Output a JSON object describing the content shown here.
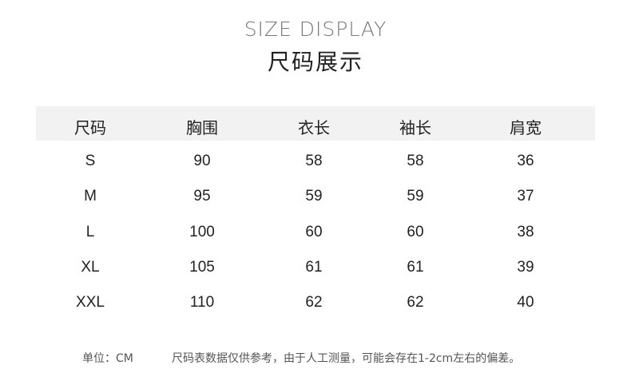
{
  "title_en": "SIZE DISPLAY",
  "title_cn": "尺码展示",
  "table": {
    "headers": [
      "尺码",
      "胸围",
      "衣长",
      "袖长",
      "肩宽"
    ],
    "rows": [
      [
        "S",
        "90",
        "58",
        "58",
        "36"
      ],
      [
        "M",
        "95",
        "59",
        "59",
        "37"
      ],
      [
        "L",
        "100",
        "60",
        "60",
        "38"
      ],
      [
        "XL",
        "105",
        "61",
        "61",
        "39"
      ],
      [
        "XXL",
        "110",
        "62",
        "62",
        "40"
      ]
    ]
  },
  "footer": {
    "unit": "单位：CM",
    "disclaimer": "尺码表数据仅供参考，由于人工测量，可能会存在1-2cm左右的偏差。"
  }
}
